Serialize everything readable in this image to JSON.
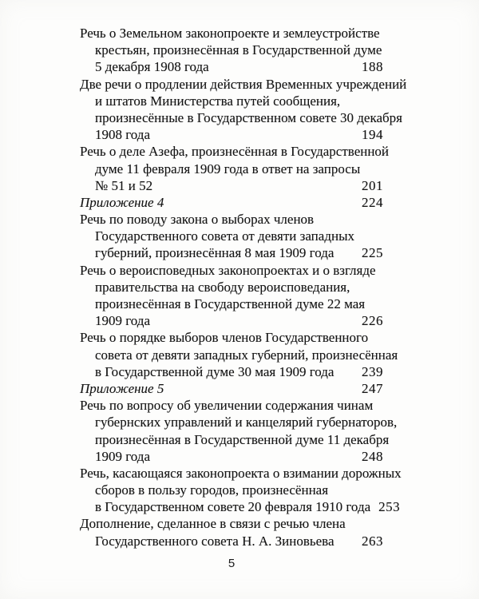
{
  "footer": {
    "page_number": "5"
  },
  "toc": {
    "entries": [
      {
        "style": "normal",
        "lines": [
          "Речь о Земельном законопроекте и землеустройстве",
          "крестьян, произнесённая в Государственной думе",
          "5 декабря 1908 года"
        ],
        "page": "188"
      },
      {
        "style": "normal",
        "lines": [
          "Две речи о продлении действия Временных учреждений",
          "и штатов Министерства путей сообщения,",
          "произнесённые в Государственном совете 30 декабря",
          "1908 года"
        ],
        "page": "194"
      },
      {
        "style": "normal",
        "lines": [
          "Речь о деле Азефа, произнесённая в Государственной",
          "думе 11 февраля 1909 года в ответ на запросы",
          "№ 51 и 52"
        ],
        "page": "201"
      },
      {
        "style": "italic",
        "lines": [
          "Приложение 4"
        ],
        "page": "224"
      },
      {
        "style": "normal",
        "lines": [
          "Речь по поводу закона о выборах членов",
          "Государственного совета от девяти западных",
          "губерний, произнесённая 8 мая 1909 года"
        ],
        "page": "225"
      },
      {
        "style": "normal",
        "lines": [
          "Речь о вероисповедных законопроектах и о взгляде",
          "правительства на свободу вероисповедания,",
          "произнесённая в Государственной думе 22 мая",
          "1909 года"
        ],
        "page": "226"
      },
      {
        "style": "normal",
        "lines": [
          "Речь о порядке выборов членов Государственного",
          "совета от девяти западных губерний, произнесённая",
          "в Государственной думе 30 мая 1909 года"
        ],
        "page": "239"
      },
      {
        "style": "italic",
        "lines": [
          "Приложение 5"
        ],
        "page": "247"
      },
      {
        "style": "normal",
        "lines": [
          "Речь по вопросу об увеличении содержания чинам",
          "губернских управлений и канцелярий губернаторов,",
          "произнесённая в Государственной думе 11 декабря",
          "1909 года"
        ],
        "page": "248"
      },
      {
        "style": "normal",
        "lines": [
          "Речь, касающаяся законопроекта о взимании дорожных",
          "сборов в пользу городов, произнесённая",
          "в Государственном совете 20 февраля 1910 года"
        ],
        "page": "253"
      },
      {
        "style": "normal",
        "lines": [
          "Дополнение, сделанное в связи с речью члена",
          "Государственного совета Н. А. Зиновьева"
        ],
        "page": "263"
      }
    ]
  }
}
